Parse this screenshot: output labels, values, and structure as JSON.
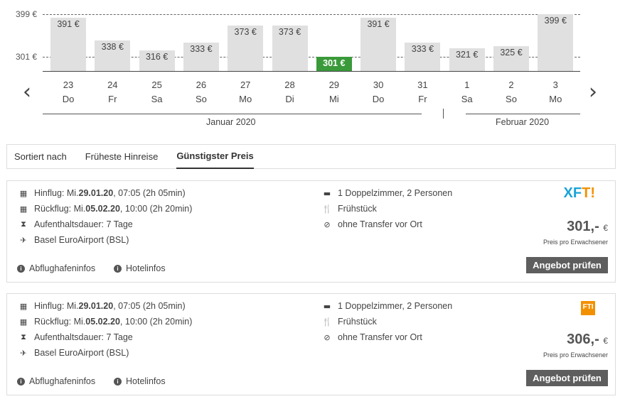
{
  "chart_data": {
    "type": "bar",
    "y_ticks": [
      "399 €",
      "301 €"
    ],
    "y_tick_values": [
      399,
      301
    ],
    "baseline_value": 268,
    "selected_index": 6,
    "bar_color": "#e0e0e0",
    "selected_color": "#3a9a3a",
    "bars": [
      {
        "day": "23",
        "weekday": "Do",
        "value": 391,
        "label": "391 €"
      },
      {
        "day": "24",
        "weekday": "Fr",
        "value": 338,
        "label": "338 €"
      },
      {
        "day": "25",
        "weekday": "Sa",
        "value": 316,
        "label": "316 €"
      },
      {
        "day": "26",
        "weekday": "So",
        "value": 333,
        "label": "333 €"
      },
      {
        "day": "27",
        "weekday": "Mo",
        "value": 373,
        "label": "373 €"
      },
      {
        "day": "28",
        "weekday": "Di",
        "value": 373,
        "label": "373 €"
      },
      {
        "day": "29",
        "weekday": "Mi",
        "value": 301,
        "label": "301 €"
      },
      {
        "day": "30",
        "weekday": "Do",
        "value": 391,
        "label": "391 €"
      },
      {
        "day": "31",
        "weekday": "Fr",
        "value": 333,
        "label": "333 €"
      },
      {
        "day": "1",
        "weekday": "Sa",
        "value": 321,
        "label": "321 €"
      },
      {
        "day": "2",
        "weekday": "So",
        "value": 325,
        "label": "325 €"
      },
      {
        "day": "3",
        "weekday": "Mo",
        "value": 399,
        "label": "399 €"
      }
    ],
    "months": [
      "Januar 2020",
      "Februar 2020"
    ]
  },
  "nav": {
    "prev": "‹",
    "next": "›"
  },
  "sort": {
    "label": "Sortiert nach",
    "tabs": [
      "Früheste Hinreise",
      "Günstigster Preis"
    ],
    "active": 1
  },
  "offers": [
    {
      "hin_pre": "Hinflug: Mi. ",
      "hin_date": "29.01.20",
      "hin_post": ", 07:05 (2h 05min)",
      "rueck_pre": "Rückflug: Mi. ",
      "rueck_date": "05.02.20",
      "rueck_post": ", 10:00 (2h 20min)",
      "stay": "Aufenthaltsdauer: 7 Tage",
      "airport": "Basel EuroAirport (BSL)",
      "room": "1 Doppelzimmer, 2 Personen",
      "board": "Frühstück",
      "transfer": "ohne Transfer vor Ort",
      "logo": "XFTI",
      "price": "301,-",
      "currency": "€",
      "price_note": "Preis pro Erwachsener",
      "button": "Angebot prüfen",
      "link1": "Abflughafeninfos",
      "link2": "Hotelinfos"
    },
    {
      "hin_pre": "Hinflug: Mi. ",
      "hin_date": "29.01.20",
      "hin_post": ", 07:05 (2h 05min)",
      "rueck_pre": "Rückflug: Mi. ",
      "rueck_date": "05.02.20",
      "rueck_post": ", 10:00 (2h 20min)",
      "stay": "Aufenthaltsdauer: 7 Tage",
      "airport": "Basel EuroAirport (BSL)",
      "room": "1 Doppelzimmer, 2 Personen",
      "board": "Frühstück",
      "transfer": "ohne Transfer vor Ort",
      "logo": "FTI",
      "price": "306,-",
      "currency": "€",
      "price_note": "Preis pro Erwachsener",
      "button": "Angebot prüfen",
      "link1": "Abflughafeninfos",
      "link2": "Hotelinfos"
    }
  ]
}
